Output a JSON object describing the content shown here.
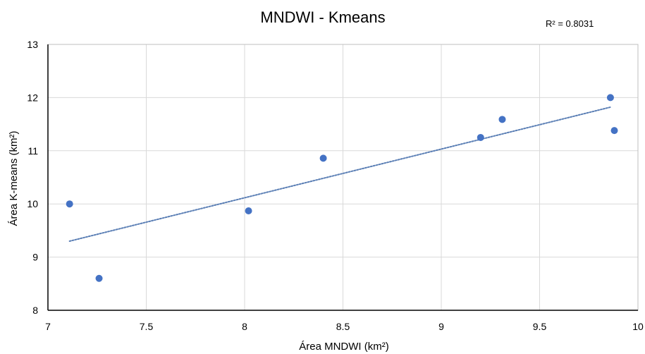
{
  "chart_data": {
    "type": "scatter",
    "title": "MNDWI - Kmeans",
    "xlabel": "Área MNDWI (km²)",
    "ylabel": "Área K-means (km²)",
    "xlim": [
      7,
      10
    ],
    "ylim": [
      8,
      13
    ],
    "x_ticks": [
      "7",
      "7.5",
      "8",
      "8.5",
      "9",
      "9.5",
      "10"
    ],
    "y_ticks": [
      "8",
      "9",
      "10",
      "11",
      "12",
      "13"
    ],
    "grid": true,
    "series": [
      {
        "x": [
          7.11,
          7.26,
          8.02,
          8.4,
          9.2,
          9.31,
          9.86,
          9.88
        ],
        "y": [
          10.0,
          8.6,
          9.87,
          10.86,
          11.25,
          11.59,
          12.0,
          11.38
        ],
        "color": "#4472c4"
      }
    ],
    "trendline": {
      "type": "linear",
      "style": "dotted",
      "color": "#5b7fb5",
      "x": [
        7.11,
        9.86
      ],
      "y": [
        9.3,
        11.82
      ]
    },
    "annotations": [
      "R² = 0.8031"
    ]
  }
}
